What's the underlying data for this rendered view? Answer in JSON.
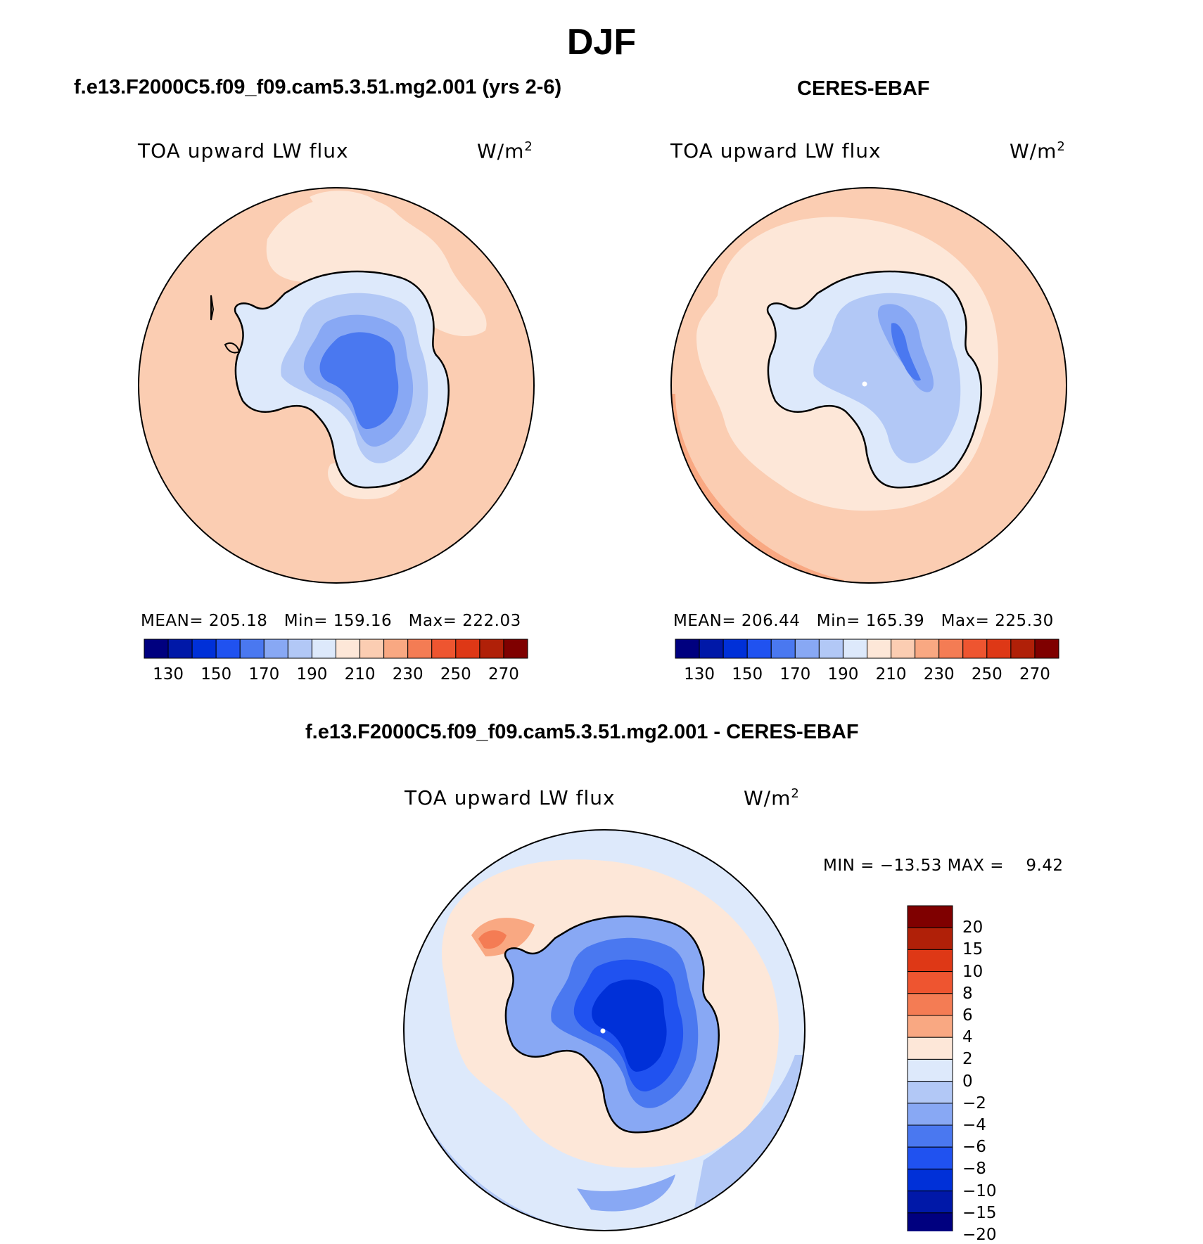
{
  "figure": {
    "title": "DJF"
  },
  "panels": [
    {
      "id": "model",
      "title": "f.e13.F2000C5.f09_f09.cam5.3.51.mg2.001 (yrs 2-6)",
      "variable": "TOA upward LW flux",
      "units": "W/m",
      "units_sup": "2",
      "stats_text": "MEAN= 205.18   Min= 159.16   Max= 222.03",
      "colorbar_ticks": [
        "130",
        "150",
        "170",
        "190",
        "210",
        "230",
        "250",
        "270"
      ]
    },
    {
      "id": "obs",
      "title": "CERES-EBAF",
      "variable": "TOA upward LW flux",
      "units": "W/m",
      "units_sup": "2",
      "stats_text": "MEAN= 206.44   Min= 165.39   Max= 225.30",
      "colorbar_ticks": [
        "130",
        "150",
        "170",
        "190",
        "210",
        "230",
        "250",
        "270"
      ]
    },
    {
      "id": "diff",
      "title": "f.e13.F2000C5.f09_f09.cam5.3.51.mg2.001 - CERES-EBAF",
      "variable": "TOA upward LW flux",
      "units": "W/m",
      "units_sup": "2",
      "stats_text": "MIN = −13.53 MAX =    9.42",
      "colorbar_ticks": [
        "20",
        "15",
        "10",
        "8",
        "6",
        "4",
        "2",
        "0",
        "−2",
        "−4",
        "−6",
        "−8",
        "−10",
        "−15",
        "−20"
      ]
    }
  ],
  "colors": {
    "abs_scale": [
      "#00007f",
      "#0018a8",
      "#0030d8",
      "#2052f0",
      "#4a78f0",
      "#88a8f4",
      "#b2c8f6",
      "#dde9fb",
      "#fde7d8",
      "#fbcdb2",
      "#f9a882",
      "#f47c54",
      "#ee5530",
      "#de3816",
      "#b02008",
      "#7f0000"
    ],
    "diff_scale": [
      "#7f0000",
      "#b02008",
      "#de3816",
      "#ee5530",
      "#f47c54",
      "#f9a882",
      "#fde7d8",
      "#dde9fb",
      "#b2c8f6",
      "#88a8f4",
      "#4a78f0",
      "#2052f0",
      "#0030d8",
      "#0018a8",
      "#00007f"
    ]
  }
}
